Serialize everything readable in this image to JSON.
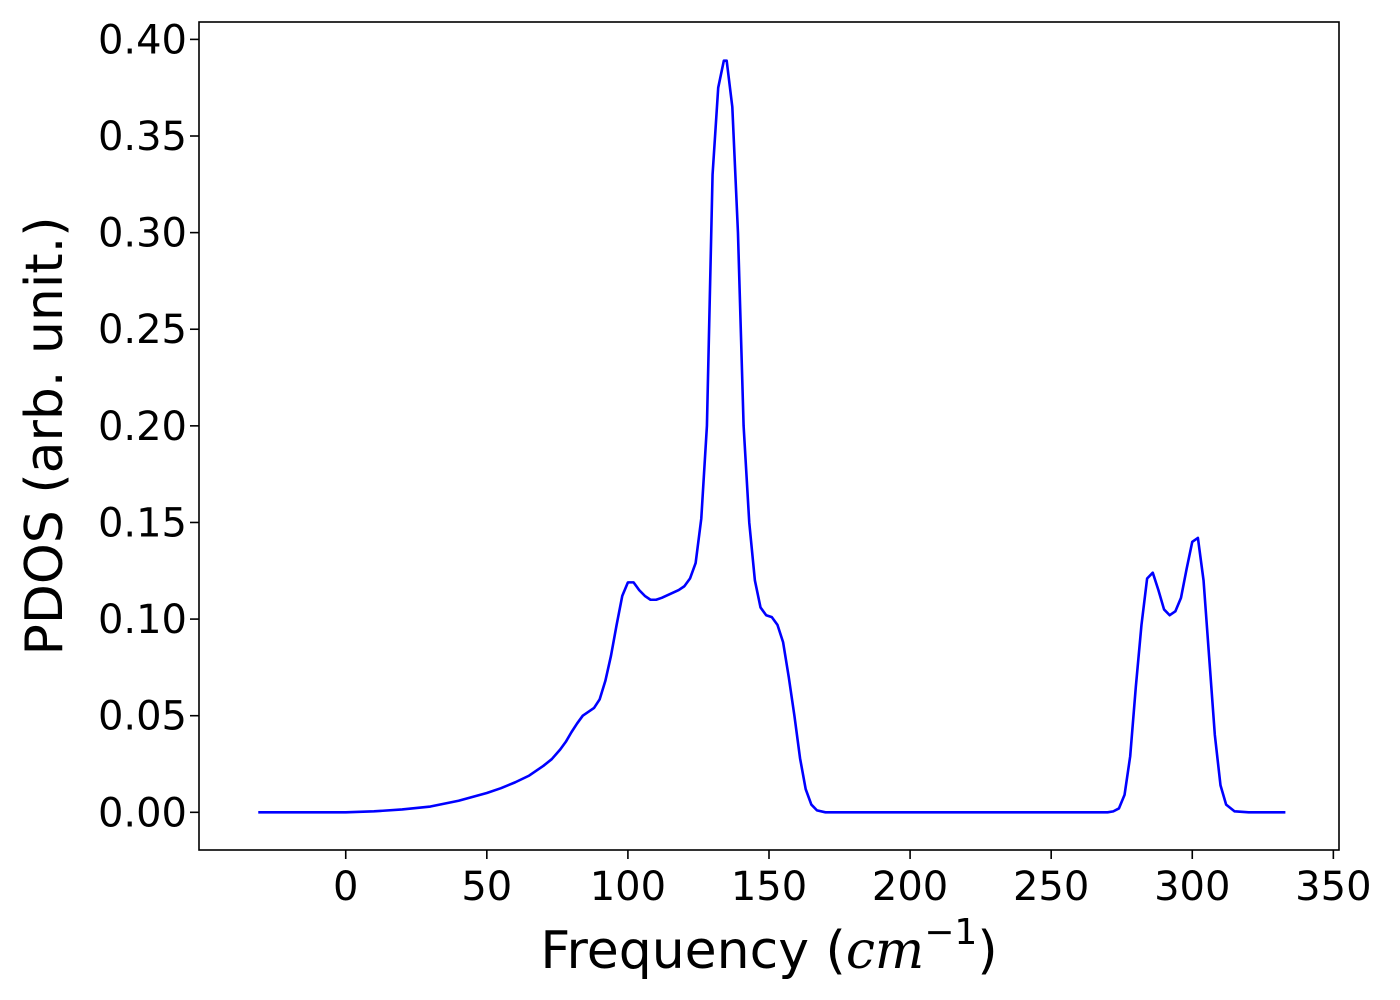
{
  "chart_data": {
    "type": "line",
    "title": "",
    "xlabel_main": "Frequency (",
    "xlabel_unit": "cm",
    "xlabel_exp": "−1",
    "xlabel_close": ")",
    "ylabel": "PDOS (arb. unit.)",
    "xlim": [
      -52,
      352
    ],
    "ylim": [
      -0.0195,
      0.409
    ],
    "xticks": [
      0,
      50,
      100,
      150,
      200,
      250,
      300,
      350
    ],
    "xtick_labels": [
      "0",
      "50",
      "100",
      "150",
      "200",
      "250",
      "300",
      "350"
    ],
    "yticks": [
      0.0,
      0.05,
      0.1,
      0.15,
      0.2,
      0.25,
      0.3,
      0.35,
      0.4
    ],
    "ytick_labels": [
      "0.00",
      "0.05",
      "0.10",
      "0.15",
      "0.20",
      "0.25",
      "0.30",
      "0.35",
      "0.40"
    ],
    "grid": false,
    "legend": "none",
    "colors": {
      "line": "#0000ff",
      "axes": "#000000",
      "background": "#ffffff"
    },
    "series": [
      {
        "color": "#0000ff",
        "x": [
          -31,
          0,
          10,
          20,
          30,
          40,
          50,
          55,
          60,
          65,
          70,
          73,
          76,
          78,
          80,
          82,
          84,
          86,
          88,
          90,
          92,
          94,
          96,
          98,
          100,
          102,
          104,
          106,
          108,
          110,
          112,
          115,
          118,
          120,
          122,
          124,
          126,
          128,
          130,
          132,
          134,
          135,
          137,
          139,
          141,
          143,
          145,
          147,
          149,
          151,
          153,
          155,
          157,
          159,
          161,
          163,
          165,
          167,
          170,
          180,
          200,
          250,
          270,
          272,
          274,
          276,
          278,
          280,
          282,
          284,
          286,
          288,
          290,
          292,
          294,
          296,
          298,
          300,
          302,
          304,
          306,
          308,
          310,
          312,
          315,
          320,
          333
        ],
        "y": [
          0.0,
          0.0,
          0.0005,
          0.0015,
          0.003,
          0.006,
          0.01,
          0.0125,
          0.0155,
          0.019,
          0.024,
          0.0275,
          0.0325,
          0.0365,
          0.0415,
          0.046,
          0.05,
          0.052,
          0.054,
          0.0585,
          0.068,
          0.081,
          0.097,
          0.112,
          0.119,
          0.119,
          0.115,
          0.112,
          0.11,
          0.11,
          0.111,
          0.113,
          0.115,
          0.117,
          0.121,
          0.129,
          0.152,
          0.2,
          0.33,
          0.375,
          0.389,
          0.389,
          0.365,
          0.3,
          0.2,
          0.15,
          0.12,
          0.106,
          0.102,
          0.101,
          0.097,
          0.088,
          0.07,
          0.05,
          0.028,
          0.012,
          0.004,
          0.001,
          0.0,
          0.0,
          0.0,
          0.0,
          0.0,
          0.0005,
          0.002,
          0.009,
          0.029,
          0.065,
          0.097,
          0.121,
          0.124,
          0.115,
          0.105,
          0.102,
          0.104,
          0.111,
          0.126,
          0.14,
          0.142,
          0.12,
          0.08,
          0.04,
          0.014,
          0.004,
          0.0005,
          0.0,
          0.0
        ]
      }
    ]
  }
}
